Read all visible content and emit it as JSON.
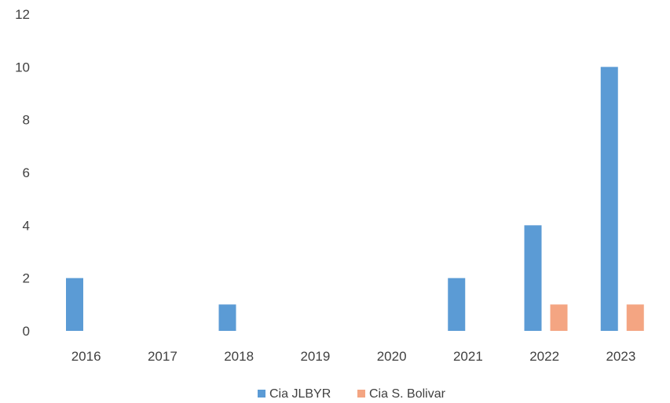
{
  "chart_data": {
    "type": "bar",
    "categories": [
      "2016",
      "2017",
      "2018",
      "2019",
      "2020",
      "2021",
      "2022",
      "2023"
    ],
    "series": [
      {
        "name": "Cia JLBYR",
        "values": [
          2,
          0,
          1,
          0,
          0,
          2,
          4,
          10
        ],
        "color": "#5b9bd5"
      },
      {
        "name": "Cia S. Bolivar",
        "values": [
          0,
          0,
          0,
          0,
          0,
          0,
          1,
          1
        ],
        "color": "#f4a582"
      }
    ],
    "ylim": [
      0,
      12
    ],
    "yticks": [
      "0",
      "2",
      "4",
      "6",
      "8",
      "10",
      "12"
    ],
    "grid": false,
    "legend_position": "bottom"
  }
}
